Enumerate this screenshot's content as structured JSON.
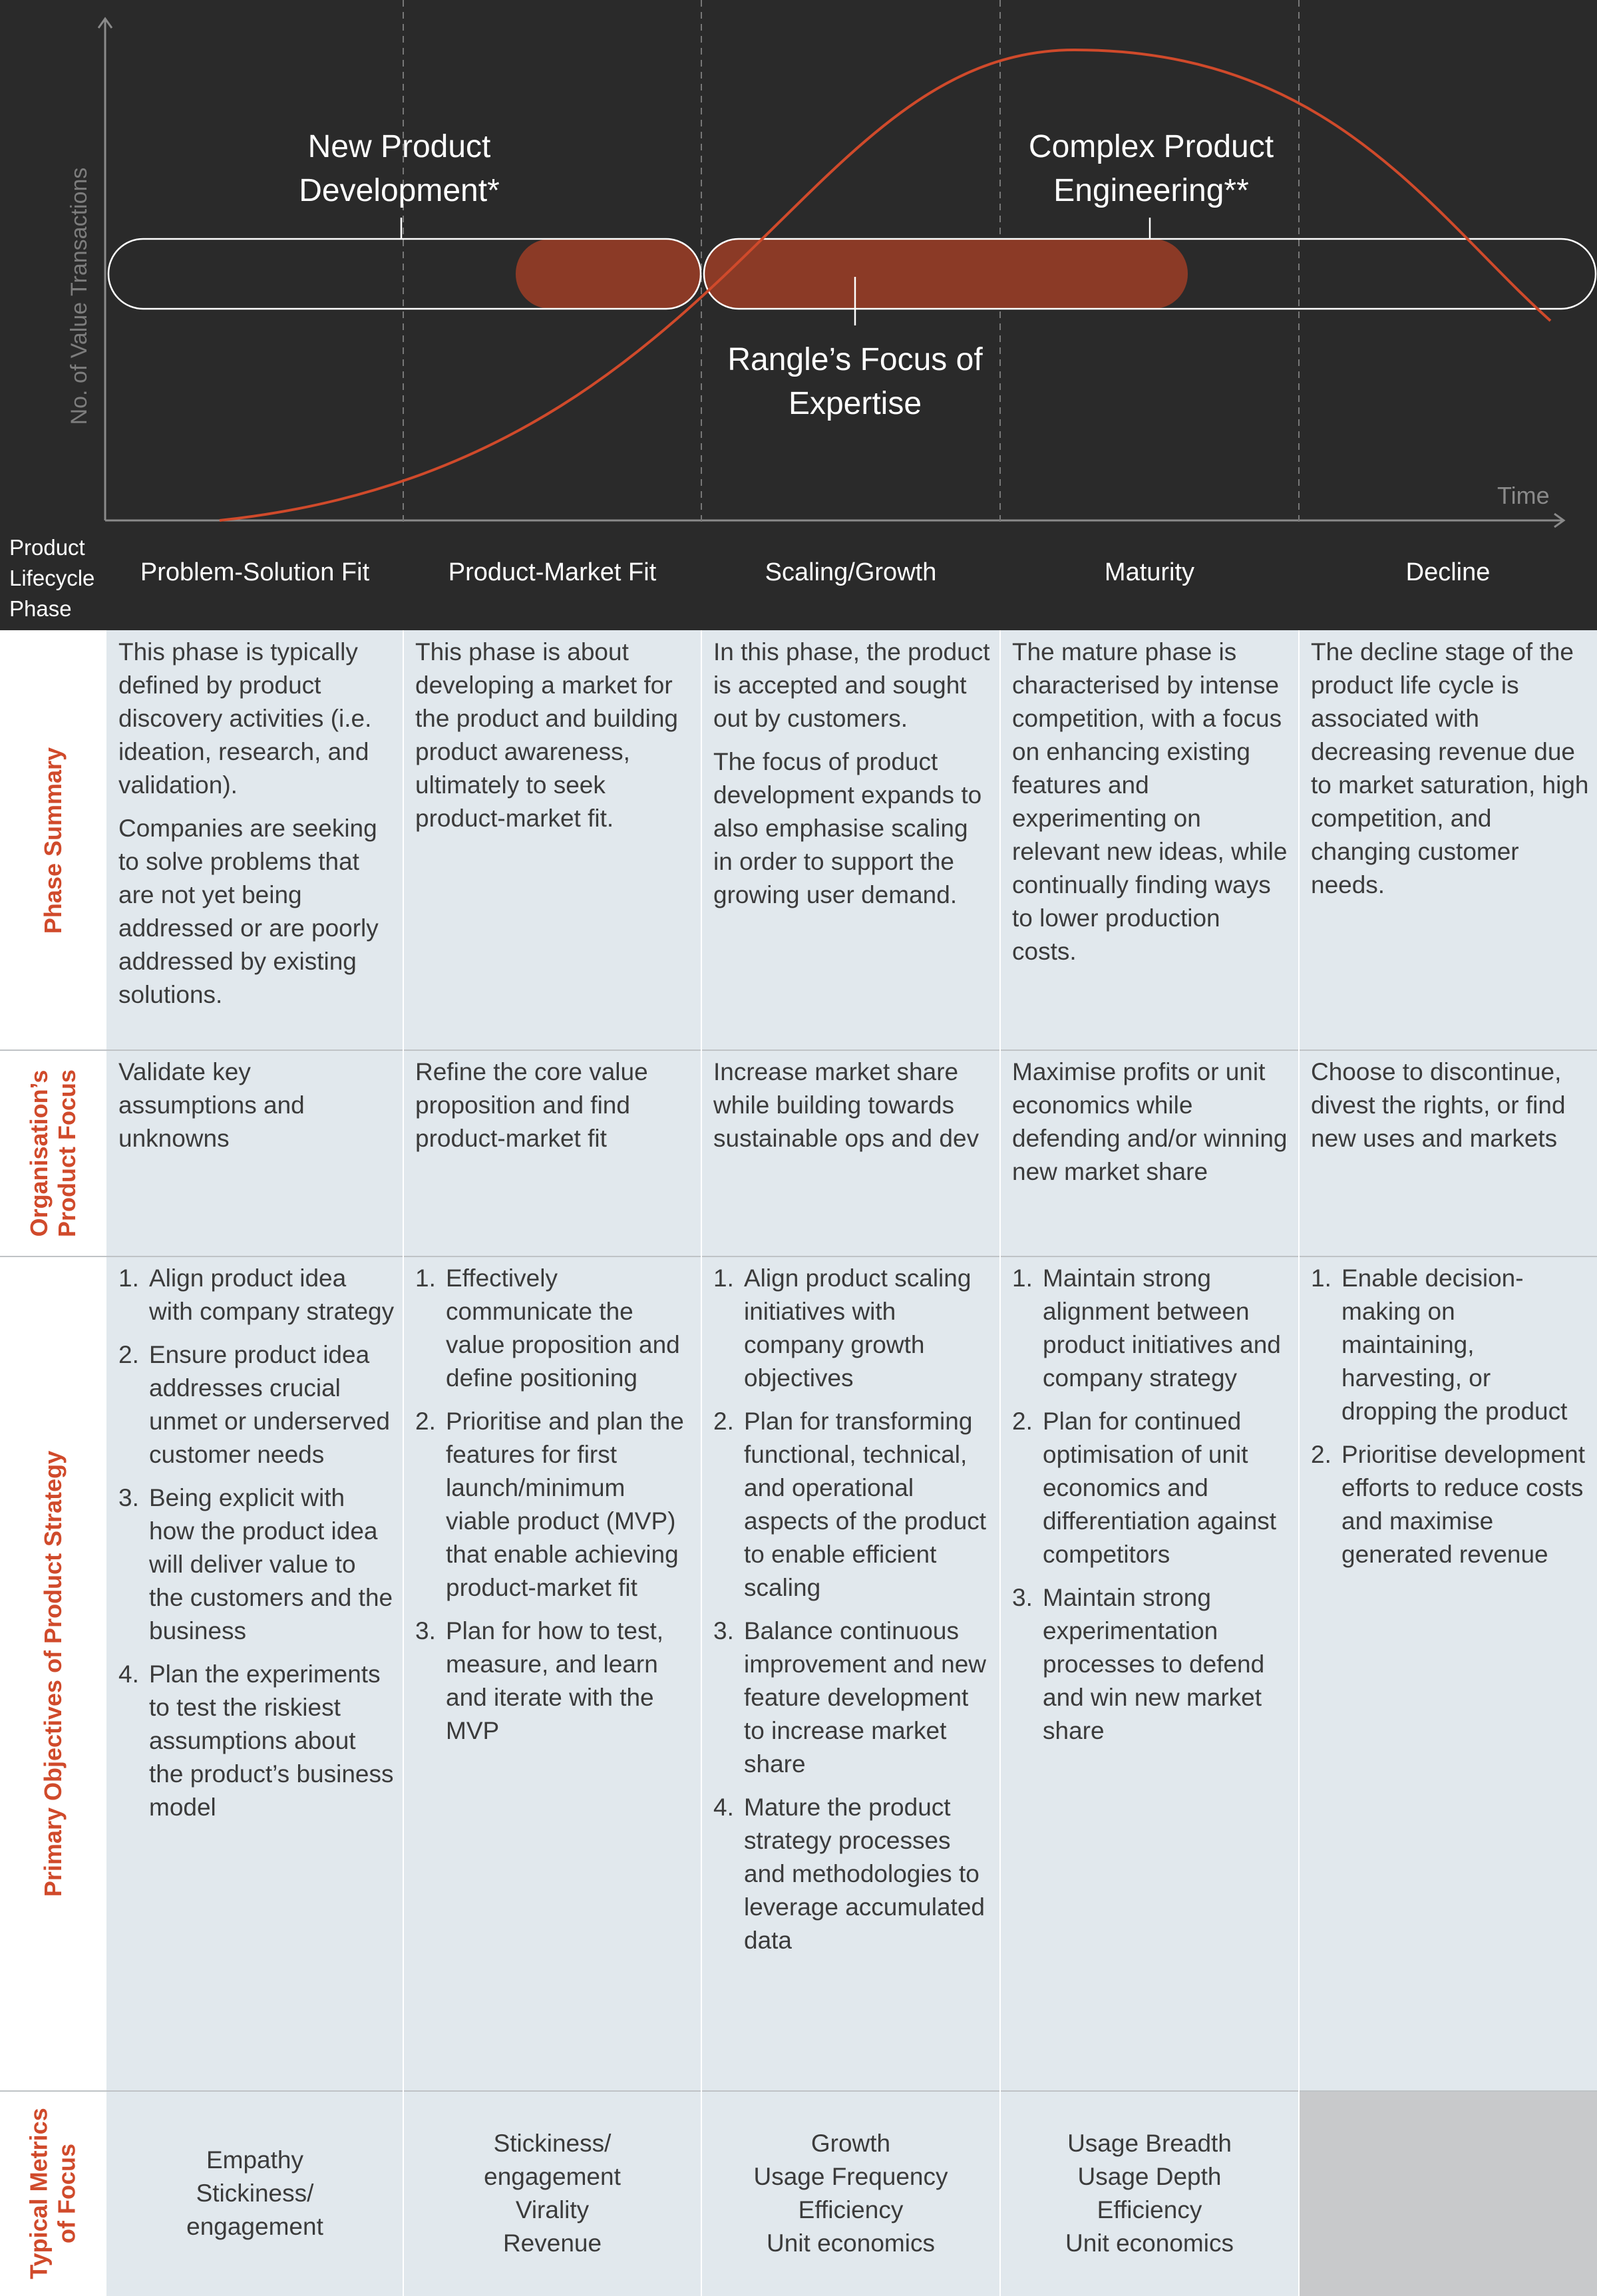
{
  "chart": {
    "y_axis_label": "No. of Value Transactions",
    "x_axis_label": "Time",
    "annotations": {
      "npd": "New Product Development*",
      "cpe": "Complex Product Engineering**",
      "rangle": "Rangle’s Focus of Expertise"
    },
    "colors": {
      "background": "#2a2a2a",
      "curve": "#d04a2b",
      "focus_bar": "#8b3a26",
      "outline": "#ffffff"
    }
  },
  "header": {
    "row_title_lines": [
      "Product",
      "Lifecycle",
      "Phase"
    ],
    "phases": [
      "Problem-Solution Fit",
      "Product-Market Fit",
      "Scaling/Growth",
      "Maturity",
      "Decline"
    ]
  },
  "rows": {
    "summary": {
      "label": "Phase Summary",
      "cells": [
        [
          "This phase is typically defined by product discovery activities (i.e. ideation, research, and validation).",
          "Companies are seeking to solve problems that are not yet being addressed or are poorly addressed by existing solutions."
        ],
        [
          "This phase is about developing a market for the product and building product awareness, ultimately to seek product-market fit."
        ],
        [
          "In this phase, the product is accepted and sought out by customers.",
          "The focus of product development expands to also emphasise scaling in order to support the growing user demand."
        ],
        [
          "The mature phase is characterised by intense competition, with a focus on enhancing existing features and experimenting on relevant new ideas, while continually finding ways to lower production costs."
        ],
        [
          "The decline stage of the product life cycle is associated with decreasing revenue due to market saturation, high competition, and changing customer needs."
        ]
      ]
    },
    "focus": {
      "label": "Organisation’s Product Focus",
      "label_lines": [
        "Organisation’s",
        "Product Focus"
      ],
      "cells": [
        "Validate key assumptions and unknowns",
        "Refine the core value proposition and find product-market fit",
        "Increase market share while building towards sustainable ops and dev",
        "Maximise profits or unit economics while defending and/or winning new market share",
        "Choose to discontinue, divest the rights, or find new uses and markets"
      ]
    },
    "objectives": {
      "label": "Primary Objectives of Product Strategy",
      "cells": [
        [
          "Align product idea with company strategy",
          "Ensure product idea addresses crucial unmet or underserved customer needs",
          "Being explicit with how the product idea will deliver value to the customers and the business",
          "Plan the experiments to test the riskiest assumptions about the product’s business model"
        ],
        [
          "Effectively communicate the value proposition and define positioning",
          "Prioritise and plan the features for first launch/minimum viable product (MVP) that enable achieving product-market fit",
          "Plan for how to test, measure, and learn and iterate with the MVP"
        ],
        [
          "Align product scaling initiatives with company growth objectives",
          "Plan for transforming functional, technical, and operational aspects of the product to enable efficient scaling",
          "Balance continuous improvement and new feature development to increase market share",
          "Mature the product strategy processes and methodologies to leverage accumulated data"
        ],
        [
          "Maintain strong alignment between product initiatives and company strategy",
          "Plan for continued optimisation of unit economics and differentiation against competitors",
          "Maintain strong experimentation processes to defend and win new market share"
        ],
        [
          "Enable decision-making on maintaining, harvesting, or dropping the product",
          "Prioritise development efforts to reduce costs and maximise generated revenue"
        ]
      ]
    },
    "metrics": {
      "label": "Typical Metrics of Focus",
      "label_lines": [
        "Typical Metrics",
        "of Focus"
      ],
      "cells": [
        [
          "Empathy",
          "Stickiness/",
          "engagement"
        ],
        [
          "Stickiness/",
          "engagement",
          "Virality",
          "Revenue"
        ],
        [
          "Growth",
          "Usage Frequency",
          "Efficiency",
          "Unit economics"
        ],
        [
          "Usage Breadth",
          "Usage Depth",
          "Efficiency",
          "Unit economics"
        ],
        []
      ]
    }
  }
}
